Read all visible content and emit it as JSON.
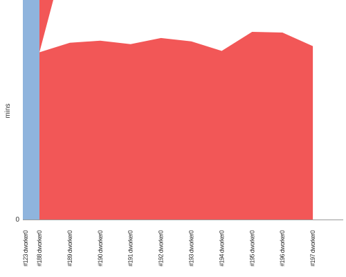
{
  "chart_data": {
    "type": "area",
    "title": "",
    "xlabel": "",
    "ylabel": "mins",
    "y_tick_labels": [
      "0"
    ],
    "ylim": [
      0,
      275
    ],
    "categories": [
      "#123 dworker0",
      "#188 dworker0",
      "#189 dworker0",
      "#190 dworker0",
      "#191 dworker0",
      "#192 dworker0",
      "#193 dworker0",
      "#194 dworker0",
      "#195 dworker0",
      "#196 dworker0",
      "#197 dworker0"
    ],
    "series": [
      {
        "color": "#8fb4dd",
        "values": [
          400,
          0,
          0,
          0,
          0,
          0,
          0,
          0,
          0,
          0,
          0
        ]
      },
      {
        "color": "#f25757",
        "values": [
          400,
          246,
          260,
          263,
          258,
          267,
          262,
          248,
          276,
          275,
          255
        ]
      }
    ],
    "extra_points": [
      {
        "between": [
          0,
          1
        ],
        "fraction": 0.5,
        "value": 400
      }
    ],
    "grid": false,
    "legend": "none"
  }
}
